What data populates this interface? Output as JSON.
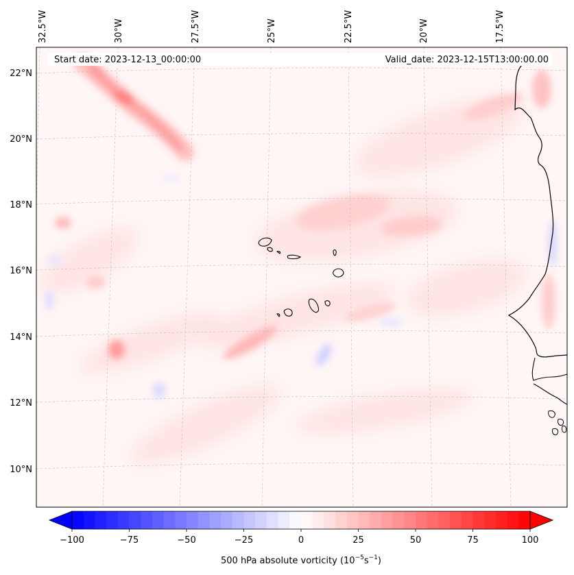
{
  "map": {
    "start_date": "Start date: 2023-12-13_00:00:00",
    "valid_date": "Valid_date: 2023-12-15T13:00:00.00",
    "longitude_labels": [
      "32.5°W",
      "30°W",
      "27.5°W",
      "25°W",
      "22.5°W",
      "20°W",
      "17.5°W"
    ],
    "latitude_labels": [
      "22°N",
      "20°N",
      "18°N",
      "16°N",
      "14°N",
      "12°N",
      "10°N"
    ],
    "colors": {
      "positive_max": "#ff0000",
      "negative_max": "#0000ff",
      "zero": "#ffffff",
      "coastline": "#000000",
      "gridline": "#bbbbbb"
    }
  },
  "colorbar": {
    "label_prefix": "500 hPa absolute vorticity (10",
    "label_exp1": "−5",
    "label_mid": "s",
    "label_exp2": "−1",
    "label_suffix": ")",
    "min": -100,
    "max": 100,
    "levels": 40,
    "tick_labels": [
      "−100",
      "−75",
      "−50",
      "−25",
      "0",
      "25",
      "50",
      "75",
      "100"
    ]
  }
}
